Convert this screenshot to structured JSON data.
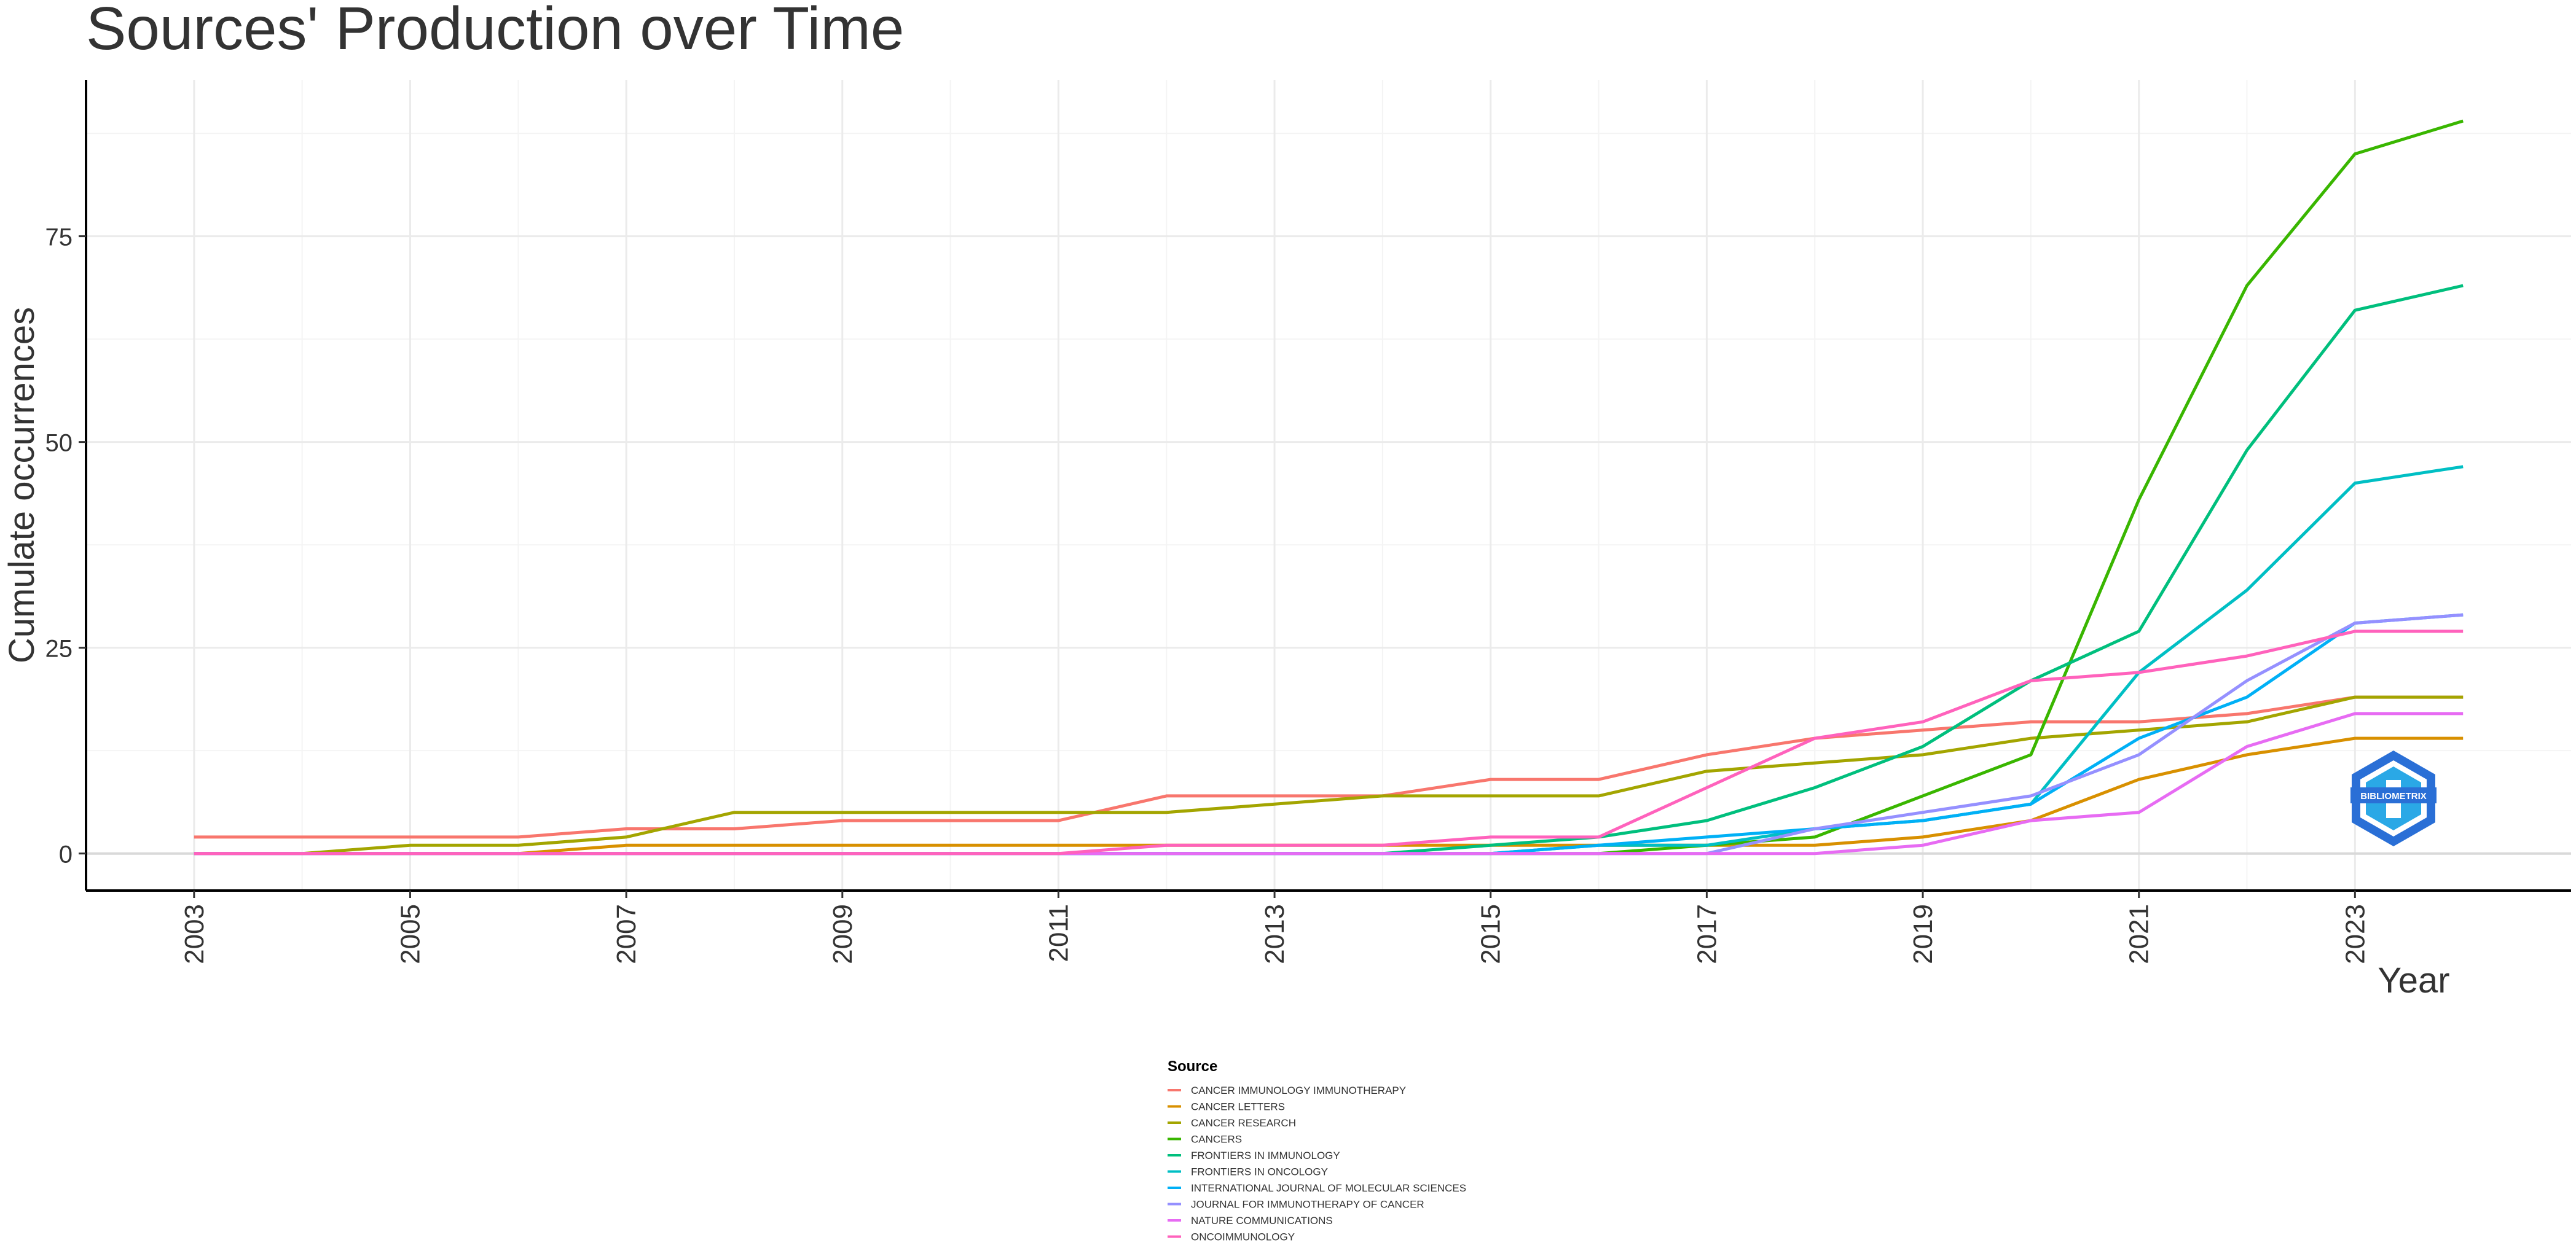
{
  "chart_data": {
    "type": "line",
    "title": "Sources' Production over Time",
    "xlabel": "Year",
    "ylabel": "Cumulate occurrences",
    "x": [
      2003,
      2004,
      2005,
      2006,
      2007,
      2008,
      2009,
      2010,
      2011,
      2012,
      2013,
      2014,
      2015,
      2016,
      2017,
      2018,
      2019,
      2020,
      2021,
      2022,
      2023,
      2024
    ],
    "x_ticks": [
      "2003",
      "2005",
      "2007",
      "2009",
      "2011",
      "2013",
      "2015",
      "2017",
      "2019",
      "2021",
      "2023"
    ],
    "y_ticks": [
      "0",
      "25",
      "50",
      "75"
    ],
    "xlim": [
      2002,
      2025
    ],
    "ylim": [
      -4.5,
      94
    ],
    "grid": true,
    "legend": {
      "title": "Source",
      "position": "bottom"
    },
    "series": [
      {
        "name": "CANCER IMMUNOLOGY IMMUNOTHERAPY",
        "color": "#F8766D",
        "values": [
          2,
          2,
          2,
          2,
          3,
          3,
          4,
          4,
          4,
          7,
          7,
          7,
          9,
          9,
          12,
          14,
          15,
          16,
          16,
          17,
          19,
          19
        ]
      },
      {
        "name": "CANCER LETTERS",
        "color": "#D89000",
        "values": [
          0,
          0,
          0,
          0,
          1,
          1,
          1,
          1,
          1,
          1,
          1,
          1,
          1,
          1,
          1,
          1,
          2,
          4,
          9,
          12,
          14,
          14
        ]
      },
      {
        "name": "CANCER RESEARCH",
        "color": "#A3A500",
        "values": [
          0,
          0,
          1,
          1,
          2,
          5,
          5,
          5,
          5,
          5,
          6,
          7,
          7,
          7,
          10,
          11,
          12,
          14,
          15,
          16,
          19,
          19
        ]
      },
      {
        "name": "CANCERS",
        "color": "#39B600",
        "values": [
          0,
          0,
          0,
          0,
          0,
          0,
          0,
          0,
          0,
          0,
          0,
          0,
          0,
          0,
          1,
          2,
          7,
          12,
          43,
          69,
          85,
          89
        ]
      },
      {
        "name": "FRONTIERS IN IMMUNOLOGY",
        "color": "#00BF7D",
        "values": [
          0,
          0,
          0,
          0,
          0,
          0,
          0,
          0,
          0,
          0,
          0,
          0,
          1,
          2,
          4,
          8,
          13,
          21,
          27,
          49,
          66,
          69
        ]
      },
      {
        "name": "FRONTIERS IN ONCOLOGY",
        "color": "#00BFC4",
        "values": [
          0,
          0,
          0,
          0,
          0,
          0,
          0,
          0,
          0,
          0,
          0,
          0,
          0,
          1,
          1,
          3,
          4,
          6,
          22,
          32,
          45,
          47
        ]
      },
      {
        "name": "INTERNATIONAL JOURNAL OF MOLECULAR SCIENCES",
        "color": "#00B0F6",
        "values": [
          0,
          0,
          0,
          0,
          0,
          0,
          0,
          0,
          0,
          0,
          0,
          0,
          0,
          1,
          2,
          3,
          4,
          6,
          14,
          19,
          28,
          29
        ]
      },
      {
        "name": "JOURNAL FOR IMMUNOTHERAPY OF CANCER",
        "color": "#9590FF",
        "values": [
          0,
          0,
          0,
          0,
          0,
          0,
          0,
          0,
          0,
          0,
          0,
          0,
          0,
          0,
          0,
          3,
          5,
          7,
          12,
          21,
          28,
          29
        ]
      },
      {
        "name": "NATURE COMMUNICATIONS",
        "color": "#E76BF3",
        "values": [
          0,
          0,
          0,
          0,
          0,
          0,
          0,
          0,
          0,
          0,
          0,
          0,
          0,
          0,
          0,
          0,
          1,
          4,
          5,
          13,
          17,
          17
        ]
      },
      {
        "name": "ONCOIMMUNOLOGY",
        "color": "#FF62BC",
        "values": [
          0,
          0,
          0,
          0,
          0,
          0,
          0,
          0,
          0,
          1,
          1,
          1,
          2,
          2,
          8,
          14,
          16,
          21,
          22,
          24,
          27,
          27
        ]
      }
    ],
    "logo": {
      "text": "BIBLIOMETRIX",
      "colors": [
        "#3a6fd0",
        "#2a9de0",
        "#7fd3f0"
      ]
    }
  }
}
